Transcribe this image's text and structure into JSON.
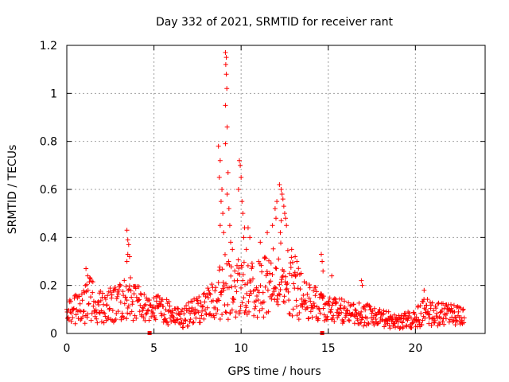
{
  "chart_data": {
    "type": "scatter",
    "title": "Day 332 of 2021, SRMTID for receiver rant",
    "xlabel": "GPS time / hours",
    "ylabel": "SRMTID / TECUs",
    "xlim": [
      0,
      24
    ],
    "ylim": [
      0,
      1.2
    ],
    "x_ticks": [
      0,
      5,
      10,
      15,
      20
    ],
    "x_tick_labels": [
      "0",
      "5",
      "10",
      "15",
      "20"
    ],
    "y_ticks": [
      0,
      0.2,
      0.4,
      0.6,
      0.8,
      1.0,
      1.2
    ],
    "y_tick_labels": [
      "0",
      "0.2",
      "0.4",
      "0.6",
      "0.8",
      "1",
      "1.2"
    ],
    "grid": true,
    "marker": "plus",
    "color": "#ff0000",
    "x_axis_markers": [
      4.75,
      14.65
    ],
    "profile": [
      {
        "x": 0.0,
        "base": 0.09,
        "spread": 0.05
      },
      {
        "x": 1.0,
        "base": 0.11,
        "spread": 0.07
      },
      {
        "x": 1.2,
        "base": 0.15,
        "spread": 0.1
      },
      {
        "x": 2.0,
        "base": 0.11,
        "spread": 0.07
      },
      {
        "x": 3.0,
        "base": 0.13,
        "spread": 0.08
      },
      {
        "x": 3.5,
        "base": 0.16,
        "spread": 0.1
      },
      {
        "x": 4.5,
        "base": 0.1,
        "spread": 0.06
      },
      {
        "x": 5.5,
        "base": 0.1,
        "spread": 0.06
      },
      {
        "x": 6.5,
        "base": 0.06,
        "spread": 0.04
      },
      {
        "x": 7.5,
        "base": 0.1,
        "spread": 0.06
      },
      {
        "x": 8.5,
        "base": 0.14,
        "spread": 0.08
      },
      {
        "x": 9.0,
        "base": 0.2,
        "spread": 0.15
      },
      {
        "x": 9.5,
        "base": 0.18,
        "spread": 0.12
      },
      {
        "x": 10.0,
        "base": 0.2,
        "spread": 0.12
      },
      {
        "x": 11.0,
        "base": 0.18,
        "spread": 0.12
      },
      {
        "x": 12.0,
        "base": 0.22,
        "spread": 0.15
      },
      {
        "x": 12.5,
        "base": 0.24,
        "spread": 0.15
      },
      {
        "x": 13.0,
        "base": 0.18,
        "spread": 0.12
      },
      {
        "x": 14.0,
        "base": 0.13,
        "spread": 0.08
      },
      {
        "x": 15.0,
        "base": 0.1,
        "spread": 0.06
      },
      {
        "x": 16.0,
        "base": 0.09,
        "spread": 0.05
      },
      {
        "x": 17.0,
        "base": 0.08,
        "spread": 0.05
      },
      {
        "x": 18.0,
        "base": 0.06,
        "spread": 0.04
      },
      {
        "x": 19.0,
        "base": 0.05,
        "spread": 0.03
      },
      {
        "x": 20.0,
        "base": 0.06,
        "spread": 0.04
      },
      {
        "x": 20.5,
        "base": 0.09,
        "spread": 0.06
      },
      {
        "x": 21.5,
        "base": 0.08,
        "spread": 0.05
      },
      {
        "x": 22.8,
        "base": 0.07,
        "spread": 0.04
      }
    ],
    "outliers": [
      {
        "x": 3.45,
        "y": 0.43
      },
      {
        "x": 3.5,
        "y": 0.39
      },
      {
        "x": 3.55,
        "y": 0.37
      },
      {
        "x": 3.5,
        "y": 0.33
      },
      {
        "x": 3.45,
        "y": 0.3
      },
      {
        "x": 3.6,
        "y": 0.32
      },
      {
        "x": 1.1,
        "y": 0.27
      },
      {
        "x": 1.2,
        "y": 0.24
      },
      {
        "x": 8.7,
        "y": 0.78
      },
      {
        "x": 8.8,
        "y": 0.72
      },
      {
        "x": 8.75,
        "y": 0.65
      },
      {
        "x": 8.9,
        "y": 0.6
      },
      {
        "x": 8.85,
        "y": 0.55
      },
      {
        "x": 8.95,
        "y": 0.5
      },
      {
        "x": 8.8,
        "y": 0.45
      },
      {
        "x": 9.0,
        "y": 0.42
      },
      {
        "x": 9.1,
        "y": 1.17
      },
      {
        "x": 9.15,
        "y": 1.15
      },
      {
        "x": 9.12,
        "y": 1.12
      },
      {
        "x": 9.15,
        "y": 1.08
      },
      {
        "x": 9.18,
        "y": 1.02
      },
      {
        "x": 9.1,
        "y": 0.95
      },
      {
        "x": 9.2,
        "y": 0.86
      },
      {
        "x": 9.1,
        "y": 0.79
      },
      {
        "x": 9.25,
        "y": 0.67
      },
      {
        "x": 9.2,
        "y": 0.58
      },
      {
        "x": 9.3,
        "y": 0.52
      },
      {
        "x": 9.35,
        "y": 0.45
      },
      {
        "x": 9.9,
        "y": 0.72
      },
      {
        "x": 9.95,
        "y": 0.7
      },
      {
        "x": 10.0,
        "y": 0.65
      },
      {
        "x": 9.85,
        "y": 0.6
      },
      {
        "x": 10.05,
        "y": 0.55
      },
      {
        "x": 10.1,
        "y": 0.5
      },
      {
        "x": 10.2,
        "y": 0.44
      },
      {
        "x": 10.15,
        "y": 0.4
      },
      {
        "x": 10.5,
        "y": 0.4
      },
      {
        "x": 10.4,
        "y": 0.44
      },
      {
        "x": 11.1,
        "y": 0.38
      },
      {
        "x": 11.5,
        "y": 0.42
      },
      {
        "x": 11.8,
        "y": 0.45
      },
      {
        "x": 12.2,
        "y": 0.62
      },
      {
        "x": 12.3,
        "y": 0.6
      },
      {
        "x": 12.35,
        "y": 0.58
      },
      {
        "x": 12.4,
        "y": 0.56
      },
      {
        "x": 12.45,
        "y": 0.53
      },
      {
        "x": 12.5,
        "y": 0.5
      },
      {
        "x": 12.55,
        "y": 0.48
      },
      {
        "x": 12.3,
        "y": 0.47
      },
      {
        "x": 12.6,
        "y": 0.45
      },
      {
        "x": 12.25,
        "y": 0.42
      },
      {
        "x": 12.05,
        "y": 0.55
      },
      {
        "x": 11.95,
        "y": 0.52
      },
      {
        "x": 12.0,
        "y": 0.48
      },
      {
        "x": 12.9,
        "y": 0.35
      },
      {
        "x": 13.1,
        "y": 0.32
      },
      {
        "x": 13.2,
        "y": 0.3
      },
      {
        "x": 14.6,
        "y": 0.33
      },
      {
        "x": 14.65,
        "y": 0.3
      },
      {
        "x": 14.7,
        "y": 0.26
      },
      {
        "x": 15.2,
        "y": 0.24
      },
      {
        "x": 16.9,
        "y": 0.22
      },
      {
        "x": 16.95,
        "y": 0.2
      },
      {
        "x": 20.5,
        "y": 0.18
      },
      {
        "x": 9.4,
        "y": 0.38
      },
      {
        "x": 9.5,
        "y": 0.35
      },
      {
        "x": 10.3,
        "y": 0.35
      }
    ]
  }
}
